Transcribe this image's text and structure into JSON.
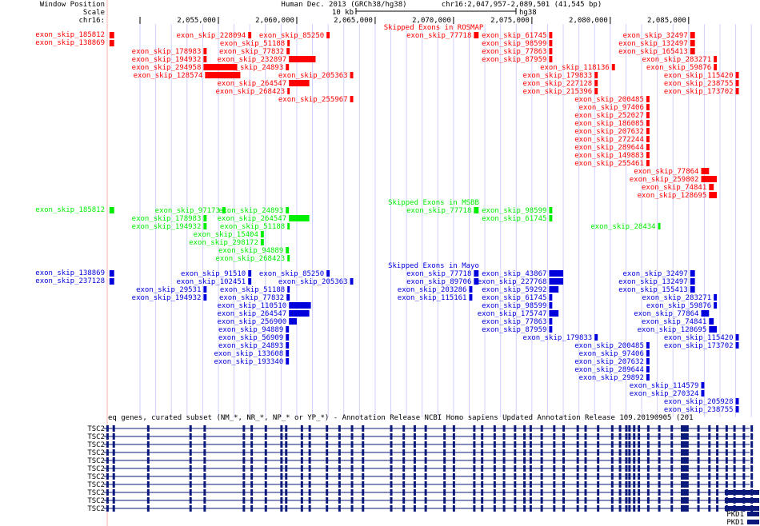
{
  "header": {
    "row_labels": [
      "Window Position",
      "Scale",
      "chr16:"
    ],
    "assembly": "Human Dec. 2013 (GRCh38/hg38)",
    "position": "chr16:2,047,957-2,089,501 (41,545 bp)",
    "scale_label": "10 kb",
    "scale_assembly": "hg38",
    "ticks": [
      "2,055,000",
      "2,060,000",
      "2,065,000",
      "2,070,000",
      "2,075,000",
      "2,080,000",
      "2,085,000"
    ]
  },
  "colors": {
    "rosmap": "#ff0000",
    "msbb": "#00ee00",
    "mayo": "#0000dd",
    "genes": "#0b1a7a",
    "grid": "#d0d0ff",
    "redline": "#ffb0b0"
  },
  "rosmap": {
    "title": "Skipped Exons in ROSMAP",
    "left_labels": [
      "exon_skip_185812",
      "exon_skip_138869"
    ],
    "items": [
      {
        "n": "exon_skip_185812",
        "s": 2048050,
        "e": 2048350,
        "r": 0
      },
      {
        "n": "exon_skip_138869",
        "s": 2048050,
        "e": 2048350,
        "r": 1
      },
      {
        "n": "exon_skip_228094",
        "s": 2056900,
        "e": 2057100,
        "r": 0
      },
      {
        "n": "exon_skip_85250",
        "s": 2061900,
        "e": 2062100,
        "r": 0
      },
      {
        "n": "exon_skip_77718",
        "s": 2071300,
        "e": 2071600,
        "r": 0
      },
      {
        "n": "exon_skip_61745",
        "s": 2076100,
        "e": 2076300,
        "r": 0
      },
      {
        "n": "exon_skip_32497",
        "s": 2085100,
        "e": 2085400,
        "r": 0
      },
      {
        "n": "exon_skip_51188",
        "s": 2059400,
        "e": 2059550,
        "r": 1
      },
      {
        "n": "exon_skip_98599",
        "s": 2076100,
        "e": 2076300,
        "r": 1
      },
      {
        "n": "exon_skip_132497",
        "s": 2085100,
        "e": 2085400,
        "r": 1
      },
      {
        "n": "exon_skip_178983",
        "s": 2054050,
        "e": 2054250,
        "r": 2
      },
      {
        "n": "exon_skip_77832",
        "s": 2059350,
        "e": 2059550,
        "r": 2
      },
      {
        "n": "exon_skip_77863",
        "s": 2076100,
        "e": 2076300,
        "r": 2
      },
      {
        "n": "exon_skip_165413",
        "s": 2085100,
        "e": 2085400,
        "r": 2
      },
      {
        "n": "exon_skip_194932",
        "s": 2054050,
        "e": 2054250,
        "r": 3
      },
      {
        "n": "exon_skip_232897",
        "s": 2059500,
        "e": 2061200,
        "r": 3
      },
      {
        "n": "exon_skip_87959",
        "s": 2076100,
        "e": 2076300,
        "r": 3
      },
      {
        "n": "exon_skip_283271",
        "s": 2086600,
        "e": 2086800,
        "r": 3
      },
      {
        "n": "exon_skip_294958",
        "s": 2054050,
        "e": 2056200,
        "r": 4
      },
      {
        "n": "exon_skip_24893",
        "s": 2059300,
        "e": 2059500,
        "r": 4
      },
      {
        "n": "exon_skip_118136",
        "s": 2080100,
        "e": 2080300,
        "r": 4
      },
      {
        "n": "exon_skip_59876",
        "s": 2086600,
        "e": 2086800,
        "r": 4
      },
      {
        "n": "exon_skip_128574",
        "s": 2054150,
        "e": 2056400,
        "r": 5
      },
      {
        "n": "exon_skip_205363",
        "s": 2063400,
        "e": 2063600,
        "r": 5
      },
      {
        "n": "exon_skip_179833",
        "s": 2079000,
        "e": 2079200,
        "r": 5
      },
      {
        "n": "exon_skip_115420",
        "s": 2088000,
        "e": 2088200,
        "r": 5
      },
      {
        "n": "exon_skip_264547",
        "s": 2059500,
        "e": 2060800,
        "r": 6
      },
      {
        "n": "exon_skip_227128",
        "s": 2079000,
        "e": 2079200,
        "r": 6
      },
      {
        "n": "exon_skip_238755",
        "s": 2088000,
        "e": 2088200,
        "r": 6
      },
      {
        "n": "exon_skip_268423",
        "s": 2059400,
        "e": 2059550,
        "r": 7
      },
      {
        "n": "exon_skip_215396",
        "s": 2079000,
        "e": 2079200,
        "r": 7
      },
      {
        "n": "exon_skip_173702",
        "s": 2088000,
        "e": 2088200,
        "r": 7
      },
      {
        "n": "exon_skip_255967",
        "s": 2063400,
        "e": 2063600,
        "r": 8
      },
      {
        "n": "exon_skip_200485",
        "s": 2082300,
        "e": 2082500,
        "r": 8
      },
      {
        "n": "exon_skip_97406",
        "s": 2082300,
        "e": 2082500,
        "r": 9
      },
      {
        "n": "exon_skip_252027",
        "s": 2082300,
        "e": 2082500,
        "r": 10
      },
      {
        "n": "exon_skip_186085",
        "s": 2082300,
        "e": 2082500,
        "r": 11
      },
      {
        "n": "exon_skip_207632",
        "s": 2082300,
        "e": 2082500,
        "r": 12
      },
      {
        "n": "exon_skip_272244",
        "s": 2082300,
        "e": 2082500,
        "r": 13
      },
      {
        "n": "exon_skip_289644",
        "s": 2082300,
        "e": 2082500,
        "r": 14
      },
      {
        "n": "exon_skip_149883",
        "s": 2082300,
        "e": 2082500,
        "r": 15
      },
      {
        "n": "exon_skip_255461",
        "s": 2082300,
        "e": 2082500,
        "r": 16
      },
      {
        "n": "exon_skip_77864",
        "s": 2085800,
        "e": 2086300,
        "r": 17
      },
      {
        "n": "exon_skip_259802",
        "s": 2085800,
        "e": 2086800,
        "r": 18
      },
      {
        "n": "exon_skip_74841",
        "s": 2086300,
        "e": 2086600,
        "r": 19
      },
      {
        "n": "exon_skip_128695",
        "s": 2086300,
        "e": 2086800,
        "r": 20
      }
    ]
  },
  "msbb": {
    "title": "Skipped Exons in MSBB",
    "left_labels": [
      "exon_skip_185812"
    ],
    "items": [
      {
        "n": "exon_skip_185812",
        "s": 2048050,
        "e": 2048350,
        "r": 0
      },
      {
        "n": "exon_skip_97173",
        "s": 2055250,
        "e": 2055450,
        "r": 0
      },
      {
        "n": "exon_skip_24893",
        "s": 2059300,
        "e": 2059500,
        "r": 0
      },
      {
        "n": "exon_skip_77718",
        "s": 2071300,
        "e": 2071600,
        "r": 0
      },
      {
        "n": "exon_skip_98599",
        "s": 2076100,
        "e": 2076300,
        "r": 0
      },
      {
        "n": "exon_skip_178983",
        "s": 2054050,
        "e": 2054250,
        "r": 1
      },
      {
        "n": "exon_skip_264547",
        "s": 2059500,
        "e": 2060800,
        "r": 1
      },
      {
        "n": "exon_skip_61745",
        "s": 2076100,
        "e": 2076300,
        "r": 1
      },
      {
        "n": "exon_skip_194932",
        "s": 2054050,
        "e": 2054250,
        "r": 2
      },
      {
        "n": "exon_skip_51188",
        "s": 2059400,
        "e": 2059550,
        "r": 2
      },
      {
        "n": "exon_skip_28434",
        "s": 2083050,
        "e": 2083200,
        "r": 2
      },
      {
        "n": "exon_skip_15404",
        "s": 2057700,
        "e": 2057900,
        "r": 3
      },
      {
        "n": "exon_skip_298172",
        "s": 2057700,
        "e": 2057900,
        "r": 4
      },
      {
        "n": "exon_skip_94889",
        "s": 2059300,
        "e": 2059500,
        "r": 5
      },
      {
        "n": "exon_skip_268423",
        "s": 2059400,
        "e": 2059550,
        "r": 6
      }
    ]
  },
  "mayo": {
    "title": "Skipped Exons in Mayo",
    "left_labels": [
      "exon_skip_138869",
      "exon_skip_237128"
    ],
    "items": [
      {
        "n": "exon_skip_138869",
        "s": 2048050,
        "e": 2048350,
        "r": 0
      },
      {
        "n": "exon_skip_237128",
        "s": 2048050,
        "e": 2048350,
        "r": 1
      },
      {
        "n": "exon_skip_91510",
        "s": 2056900,
        "e": 2057100,
        "r": 0
      },
      {
        "n": "exon_skip_85250",
        "s": 2061900,
        "e": 2062100,
        "r": 0
      },
      {
        "n": "exon_skip_77718",
        "s": 2071300,
        "e": 2071600,
        "r": 0
      },
      {
        "n": "exon_skip_43867",
        "s": 2076100,
        "e": 2077000,
        "r": 0
      },
      {
        "n": "exon_skip_32497",
        "s": 2085100,
        "e": 2085400,
        "r": 0
      },
      {
        "n": "exon_skip_102451",
        "s": 2056900,
        "e": 2057100,
        "r": 1
      },
      {
        "n": "exon_skip_205363",
        "s": 2063400,
        "e": 2063600,
        "r": 1
      },
      {
        "n": "exon_skip_89706",
        "s": 2071300,
        "e": 2071600,
        "r": 1
      },
      {
        "n": "exon_skip_227768",
        "s": 2076100,
        "e": 2077000,
        "r": 1
      },
      {
        "n": "exon_skip_132497",
        "s": 2085100,
        "e": 2085400,
        "r": 1
      },
      {
        "n": "exon_skip_29531",
        "s": 2054050,
        "e": 2054250,
        "r": 2
      },
      {
        "n": "exon_skip_51188",
        "s": 2059400,
        "e": 2059550,
        "r": 2
      },
      {
        "n": "exon_skip_203286",
        "s": 2071000,
        "e": 2071200,
        "r": 2
      },
      {
        "n": "exon_skip_59292",
        "s": 2076100,
        "e": 2076700,
        "r": 2
      },
      {
        "n": "exon_skip_155413",
        "s": 2085100,
        "e": 2085400,
        "r": 2
      },
      {
        "n": "exon_skip_194932",
        "s": 2054050,
        "e": 2054250,
        "r": 3
      },
      {
        "n": "exon_skip_77832",
        "s": 2059350,
        "e": 2059550,
        "r": 3
      },
      {
        "n": "exon_skip_115161",
        "s": 2071000,
        "e": 2071200,
        "r": 3
      },
      {
        "n": "exon_skip_61745",
        "s": 2076100,
        "e": 2076300,
        "r": 3
      },
      {
        "n": "exon_skip_283271",
        "s": 2086600,
        "e": 2086800,
        "r": 3
      },
      {
        "n": "exon_skip_110510",
        "s": 2059500,
        "e": 2060900,
        "r": 4
      },
      {
        "n": "exon_skip_98599",
        "s": 2076100,
        "e": 2076300,
        "r": 4
      },
      {
        "n": "exon_skip_59876",
        "s": 2086600,
        "e": 2086800,
        "r": 4
      },
      {
        "n": "exon_skip_264547",
        "s": 2059500,
        "e": 2060800,
        "r": 5
      },
      {
        "n": "exon_skip_175747",
        "s": 2076100,
        "e": 2076700,
        "r": 5
      },
      {
        "n": "exon_skip_77864",
        "s": 2085800,
        "e": 2086300,
        "r": 5
      },
      {
        "n": "exon_skip_256900",
        "s": 2059500,
        "e": 2060000,
        "r": 6
      },
      {
        "n": "exon_skip_77863",
        "s": 2076100,
        "e": 2076300,
        "r": 6
      },
      {
        "n": "exon_skip_74841",
        "s": 2086300,
        "e": 2086600,
        "r": 6
      },
      {
        "n": "exon_skip_94889",
        "s": 2059300,
        "e": 2059500,
        "r": 7
      },
      {
        "n": "exon_skip_87959",
        "s": 2076100,
        "e": 2076300,
        "r": 7
      },
      {
        "n": "exon_skip_128695",
        "s": 2086300,
        "e": 2086800,
        "r": 7
      },
      {
        "n": "exon_skip_56909",
        "s": 2059300,
        "e": 2059500,
        "r": 8
      },
      {
        "n": "exon_skip_179833",
        "s": 2079000,
        "e": 2079200,
        "r": 8
      },
      {
        "n": "exon_skip_115420",
        "s": 2088000,
        "e": 2088200,
        "r": 8
      },
      {
        "n": "exon_skip_24893",
        "s": 2059300,
        "e": 2059500,
        "r": 9
      },
      {
        "n": "exon_skip_200485",
        "s": 2082300,
        "e": 2082500,
        "r": 9
      },
      {
        "n": "exon_skip_173702",
        "s": 2088000,
        "e": 2088200,
        "r": 9
      },
      {
        "n": "exon_skip_133608",
        "s": 2059300,
        "e": 2059500,
        "r": 10
      },
      {
        "n": "exon_skip_97406",
        "s": 2082300,
        "e": 2082500,
        "r": 10
      },
      {
        "n": "exon_skip_193340",
        "s": 2059300,
        "e": 2059500,
        "r": 11
      },
      {
        "n": "exon_skip_207632",
        "s": 2082300,
        "e": 2082500,
        "r": 11
      },
      {
        "n": "exon_skip_289644",
        "s": 2082300,
        "e": 2082500,
        "r": 12
      },
      {
        "n": "exon_skip_29892",
        "s": 2082300,
        "e": 2082500,
        "r": 13
      },
      {
        "n": "exon_skip_114579",
        "s": 2085800,
        "e": 2086000,
        "r": 14
      },
      {
        "n": "exon_skip_270324",
        "s": 2085800,
        "e": 2086000,
        "r": 15
      },
      {
        "n": "exon_skip_205928",
        "s": 2088000,
        "e": 2088200,
        "r": 16
      },
      {
        "n": "exon_skip_238755",
        "s": 2088000,
        "e": 2088200,
        "r": 17
      }
    ]
  },
  "genes": {
    "title": "eq genes, curated subset (NM_*, NR_*, NP_* or YP_*) - Annotation Release NCBI Homo sapiens Updated Annotation Release 109.20190905 (201",
    "tsc2_rows": [
      "TSC2",
      "TSC2",
      "TSC2",
      "TSC2",
      "TSC2",
      "TSC2",
      "TSC2",
      "TSC2",
      "TSC2",
      "TSC2",
      "TSC2"
    ],
    "pkd1_rows": [
      "PKD1",
      "PKD1"
    ],
    "tsc2_exons": [
      2047900,
      2048300,
      2050500,
      2053200,
      2054100,
      2056600,
      2057100,
      2058000,
      2059000,
      2059300,
      2060300,
      2060800,
      2061900,
      2062700,
      2063500,
      2064200,
      2066000,
      2066800,
      2067500,
      2068200,
      2069400,
      2070000,
      2071300,
      2071800,
      2072600,
      2073200,
      2073900,
      2074500,
      2074900,
      2075600,
      2076400,
      2077000,
      2077900,
      2078400,
      2079200,
      2080100,
      2080600,
      2081000,
      2081200,
      2081500,
      2081800,
      2082400,
      2083100,
      2083900,
      2084900,
      2085600,
      2086300,
      2086800,
      2087400,
      2087900,
      2088500,
      2089000
    ],
    "tsc2_thick": [
      2084500,
      2084900
    ],
    "pkd1_start": 2087300
  }
}
